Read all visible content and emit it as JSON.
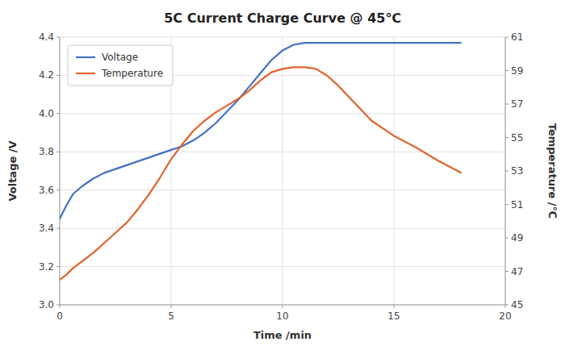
{
  "chart_data": {
    "type": "line",
    "title": "5C Current Charge Curve @ 45℃",
    "xlabel": "Time /min",
    "ylabel": "Voltage /V",
    "y2label": "Temperature /℃",
    "series": [
      {
        "name": "Voltage",
        "color": "#4472C4",
        "x": [
          0,
          0.3,
          0.6,
          1.0,
          1.5,
          2.0,
          2.5,
          3.0,
          3.5,
          4.0,
          4.5,
          5.0,
          5.5,
          6.0,
          6.5,
          7.0,
          7.5,
          8.0,
          8.5,
          9.0,
          9.5,
          10.0,
          10.5,
          11.0,
          11.5,
          12.0,
          13.0,
          14.0,
          15.0,
          16.0,
          17.0,
          18.0
        ],
        "values": [
          3.45,
          3.52,
          3.58,
          3.62,
          3.66,
          3.69,
          3.71,
          3.73,
          3.75,
          3.77,
          3.79,
          3.81,
          3.83,
          3.86,
          3.9,
          3.95,
          4.01,
          4.07,
          4.14,
          4.21,
          4.28,
          4.33,
          4.36,
          4.37,
          4.37,
          4.37,
          4.37,
          4.37,
          4.37,
          4.37,
          4.37,
          4.37
        ]
      },
      {
        "name": "Temperature",
        "color": "#E4622A",
        "axis": "y2",
        "x": [
          0,
          0.3,
          0.6,
          1.0,
          1.5,
          2.0,
          2.5,
          3.0,
          3.5,
          4.0,
          4.5,
          5.0,
          5.5,
          6.0,
          6.5,
          7.0,
          7.5,
          8.0,
          8.5,
          9.0,
          9.5,
          10.0,
          10.5,
          11.0,
          11.5,
          12.0,
          12.5,
          13.0,
          14.0,
          15.0,
          16.0,
          17.0,
          18.0
        ],
        "values": [
          46.5,
          46.8,
          47.2,
          47.6,
          48.1,
          48.7,
          49.3,
          49.9,
          50.7,
          51.6,
          52.6,
          53.7,
          54.6,
          55.4,
          56.0,
          56.5,
          56.9,
          57.3,
          57.8,
          58.4,
          58.9,
          59.1,
          59.2,
          59.2,
          59.1,
          58.7,
          58.1,
          57.4,
          56.0,
          55.1,
          54.4,
          53.6,
          52.9
        ]
      }
    ],
    "xlim": [
      0,
      20
    ],
    "xticks": [
      0,
      5,
      10,
      15,
      20
    ],
    "ylim": [
      3.0,
      4.4
    ],
    "yticks": [
      {
        "value": 3.0,
        "label": "3.0"
      },
      3.2,
      3.4,
      3.6,
      3.8,
      {
        "value": 4.0,
        "label": "4.0"
      },
      4.2,
      4.4
    ],
    "y2lim": [
      45,
      61
    ],
    "y2ticks": [
      45,
      47,
      49,
      51,
      53,
      55,
      57,
      59,
      61
    ],
    "grid": true,
    "legend": "upper left"
  }
}
